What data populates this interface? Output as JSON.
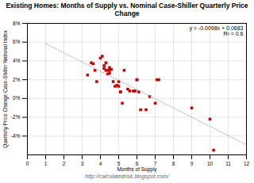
{
  "chart_data": {
    "type": "scatter",
    "title": "Existing Homes: Months of Supply vs. Nominal Case-Shiller Quarterly Price Change",
    "xlabel": "Months of Supply",
    "ylabel": "Quarterly Price Change Case-Shiller National Index",
    "caption": "http://calculatedrisk.blogspot.com/",
    "annotations": [
      "y = -0.0098x + 0.0683",
      "R² = 0.6"
    ],
    "series": [
      {
        "type": "scatter",
        "color": "#cc0000",
        "marker": "square",
        "x": [
          3.3,
          3.5,
          3.6,
          3.7,
          3.8,
          4.0,
          4.1,
          4.2,
          4.2,
          4.3,
          4.3,
          4.4,
          4.4,
          4.5,
          4.5,
          4.5,
          4.6,
          4.7,
          4.8,
          4.9,
          5.0,
          5.0,
          5.1,
          5.1,
          5.2,
          5.3,
          5.5,
          5.6,
          5.8,
          5.9,
          6.0,
          6.0,
          6.1,
          6.2,
          6.5,
          6.7,
          7.0,
          7.1,
          7.2,
          9.0,
          10.0,
          10.2
        ],
        "values": [
          0.025,
          0.038,
          0.037,
          0.03,
          0.018,
          0.043,
          0.045,
          0.035,
          0.032,
          0.03,
          0.038,
          0.03,
          0.026,
          0.03,
          0.033,
          0.027,
          0.031,
          0.018,
          0.013,
          0.014,
          0.018,
          0.013,
          0.007,
          0.007,
          -0.005,
          0.03,
          0.01,
          0.008,
          0.008,
          0.008,
          0.02,
          0.02,
          0.007,
          -0.012,
          -0.012,
          0.002,
          -0.005,
          0.02,
          0.02,
          -0.01,
          -0.022,
          -0.055
        ]
      },
      {
        "type": "line",
        "color": "#aaaaaa",
        "line_style": "dotted",
        "x": [
          1.0,
          12.0
        ],
        "values": [
          0.0585,
          -0.0493
        ]
      }
    ],
    "xlim": [
      0,
      12
    ],
    "xticks": [
      0,
      1,
      2,
      3,
      4,
      5,
      6,
      7,
      8,
      9,
      10,
      11,
      12
    ],
    "ylim": [
      -0.06,
      0.08
    ],
    "yticks": [
      {
        "value": -0.04,
        "label": "-4%"
      },
      {
        "value": -0.02,
        "label": "-2%"
      },
      {
        "value": 0.0,
        "label": "0%"
      },
      {
        "value": 0.02,
        "label": "2%"
      },
      {
        "value": 0.04,
        "label": "4%"
      },
      {
        "value": 0.06,
        "label": "6%"
      },
      {
        "value": 0.08,
        "label": "8%"
      }
    ],
    "grid": true
  }
}
